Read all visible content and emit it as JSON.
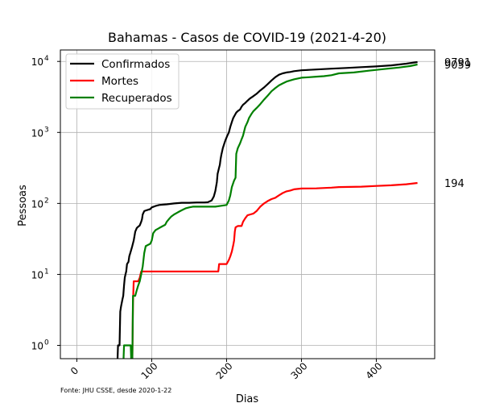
{
  "chart_data": {
    "type": "line",
    "title": "Bahamas - Casos de COVID-19 (2021-4-20)",
    "xlabel": "Dias",
    "ylabel": "Pessoas",
    "yscale": "log",
    "xlim": [
      -22,
      478
    ],
    "ylim": [
      0.65,
      14500
    ],
    "xticks": [
      0,
      100,
      200,
      300,
      400
    ],
    "yticks": [
      {
        "value": 1,
        "base": "10",
        "exp": "0"
      },
      {
        "value": 10,
        "base": "10",
        "exp": "1"
      },
      {
        "value": 100,
        "base": "10",
        "exp": "2"
      },
      {
        "value": 1000,
        "base": "10",
        "exp": "3"
      },
      {
        "value": 10000,
        "base": "10",
        "exp": "4"
      }
    ],
    "grid": true,
    "legend_position": "top-left",
    "footnote": "Fonte: JHU CSSE, desde 2020-1-22",
    "series": [
      {
        "name": "Confirmados",
        "color": "#000000",
        "end_label": "9791",
        "points": [
          [
            54,
            0.5
          ],
          [
            55,
            1
          ],
          [
            57,
            1
          ],
          [
            58,
            3
          ],
          [
            59,
            3.5
          ],
          [
            60,
            4
          ],
          [
            61,
            4.5
          ],
          [
            62,
            5
          ],
          [
            63,
            7
          ],
          [
            64,
            9
          ],
          [
            65,
            10
          ],
          [
            66,
            11
          ],
          [
            67,
            14
          ],
          [
            69,
            15
          ],
          [
            70,
            18
          ],
          [
            72,
            21
          ],
          [
            74,
            25
          ],
          [
            76,
            30
          ],
          [
            78,
            40
          ],
          [
            80,
            45
          ],
          [
            82,
            47
          ],
          [
            84,
            49
          ],
          [
            86,
            55
          ],
          [
            87,
            60
          ],
          [
            88,
            70
          ],
          [
            90,
            78
          ],
          [
            93,
            80
          ],
          [
            96,
            82
          ],
          [
            98,
            83
          ],
          [
            100,
            88
          ],
          [
            105,
            92
          ],
          [
            110,
            95
          ],
          [
            115,
            96
          ],
          [
            120,
            97
          ],
          [
            130,
            100
          ],
          [
            140,
            102
          ],
          [
            150,
            102
          ],
          [
            160,
            103
          ],
          [
            170,
            103
          ],
          [
            175,
            104
          ],
          [
            180,
            110
          ],
          [
            183,
            125
          ],
          [
            185,
            150
          ],
          [
            187,
            200
          ],
          [
            188,
            260
          ],
          [
            190,
            320
          ],
          [
            191,
            350
          ],
          [
            192,
            420
          ],
          [
            193,
            480
          ],
          [
            195,
            600
          ],
          [
            197,
            700
          ],
          [
            199,
            800
          ],
          [
            201,
            900
          ],
          [
            203,
            1000
          ],
          [
            205,
            1200
          ],
          [
            207,
            1400
          ],
          [
            209,
            1600
          ],
          [
            211,
            1750
          ],
          [
            213,
            1900
          ],
          [
            215,
            2000
          ],
          [
            218,
            2100
          ],
          [
            220,
            2300
          ],
          [
            222,
            2450
          ],
          [
            225,
            2600
          ],
          [
            228,
            2800
          ],
          [
            231,
            3000
          ],
          [
            235,
            3200
          ],
          [
            240,
            3500
          ],
          [
            245,
            3900
          ],
          [
            250,
            4300
          ],
          [
            255,
            4800
          ],
          [
            260,
            5400
          ],
          [
            265,
            6000
          ],
          [
            270,
            6500
          ],
          [
            275,
            6800
          ],
          [
            280,
            7000
          ],
          [
            285,
            7100
          ],
          [
            290,
            7300
          ],
          [
            300,
            7500
          ],
          [
            310,
            7600
          ],
          [
            320,
            7700
          ],
          [
            340,
            7900
          ],
          [
            360,
            8100
          ],
          [
            380,
            8300
          ],
          [
            400,
            8500
          ],
          [
            420,
            8800
          ],
          [
            440,
            9300
          ],
          [
            455,
            9791
          ]
        ]
      },
      {
        "name": "Mortes",
        "color": "#ff0000",
        "end_label": "194",
        "points": [
          [
            74,
            0.5
          ],
          [
            75,
            4
          ],
          [
            76,
            8
          ],
          [
            80,
            8
          ],
          [
            82,
            8
          ],
          [
            84,
            9
          ],
          [
            86,
            11
          ],
          [
            100,
            11
          ],
          [
            120,
            11
          ],
          [
            150,
            11
          ],
          [
            189,
            11
          ],
          [
            190,
            14
          ],
          [
            200,
            14
          ],
          [
            203,
            16
          ],
          [
            205,
            18
          ],
          [
            207,
            21
          ],
          [
            209,
            26
          ],
          [
            210,
            30
          ],
          [
            211,
            40
          ],
          [
            212,
            46
          ],
          [
            215,
            48
          ],
          [
            220,
            48
          ],
          [
            222,
            55
          ],
          [
            225,
            62
          ],
          [
            228,
            68
          ],
          [
            232,
            70
          ],
          [
            236,
            72
          ],
          [
            240,
            78
          ],
          [
            245,
            90
          ],
          [
            250,
            100
          ],
          [
            255,
            108
          ],
          [
            260,
            115
          ],
          [
            265,
            120
          ],
          [
            270,
            130
          ],
          [
            275,
            140
          ],
          [
            280,
            148
          ],
          [
            285,
            152
          ],
          [
            290,
            158
          ],
          [
            300,
            162
          ],
          [
            320,
            163
          ],
          [
            340,
            167
          ],
          [
            350,
            170
          ],
          [
            380,
            172
          ],
          [
            400,
            176
          ],
          [
            420,
            180
          ],
          [
            440,
            186
          ],
          [
            455,
            194
          ]
        ]
      },
      {
        "name": "Recuperados",
        "color": "#008000",
        "end_label": "9059",
        "points": [
          [
            62,
            0.5
          ],
          [
            63,
            1
          ],
          [
            72,
            1
          ],
          [
            73,
            0.5
          ],
          [
            74,
            0.5
          ],
          [
            75,
            5
          ],
          [
            78,
            5
          ],
          [
            80,
            6
          ],
          [
            82,
            7
          ],
          [
            84,
            8
          ],
          [
            86,
            10
          ],
          [
            88,
            13
          ],
          [
            90,
            20
          ],
          [
            92,
            25
          ],
          [
            95,
            26
          ],
          [
            98,
            27
          ],
          [
            100,
            30
          ],
          [
            102,
            38
          ],
          [
            105,
            42
          ],
          [
            110,
            45
          ],
          [
            115,
            48
          ],
          [
            118,
            50
          ],
          [
            120,
            55
          ],
          [
            123,
            60
          ],
          [
            126,
            65
          ],
          [
            130,
            70
          ],
          [
            135,
            75
          ],
          [
            140,
            80
          ],
          [
            145,
            85
          ],
          [
            150,
            88
          ],
          [
            155,
            90
          ],
          [
            170,
            90
          ],
          [
            185,
            90
          ],
          [
            200,
            95
          ],
          [
            203,
            110
          ],
          [
            205,
            130
          ],
          [
            207,
            170
          ],
          [
            210,
            210
          ],
          [
            212,
            230
          ],
          [
            213,
            500
          ],
          [
            215,
            600
          ],
          [
            218,
            700
          ],
          [
            220,
            800
          ],
          [
            222,
            900
          ],
          [
            225,
            1200
          ],
          [
            228,
            1400
          ],
          [
            230,
            1600
          ],
          [
            233,
            1800
          ],
          [
            236,
            2000
          ],
          [
            240,
            2200
          ],
          [
            245,
            2500
          ],
          [
            250,
            2900
          ],
          [
            255,
            3300
          ],
          [
            260,
            3800
          ],
          [
            265,
            4200
          ],
          [
            270,
            4600
          ],
          [
            275,
            4900
          ],
          [
            280,
            5200
          ],
          [
            285,
            5400
          ],
          [
            290,
            5600
          ],
          [
            300,
            5900
          ],
          [
            310,
            6000
          ],
          [
            320,
            6100
          ],
          [
            330,
            6200
          ],
          [
            340,
            6400
          ],
          [
            350,
            6800
          ],
          [
            370,
            7000
          ],
          [
            390,
            7400
          ],
          [
            410,
            7800
          ],
          [
            430,
            8200
          ],
          [
            445,
            8600
          ],
          [
            455,
            9059
          ]
        ]
      }
    ]
  }
}
